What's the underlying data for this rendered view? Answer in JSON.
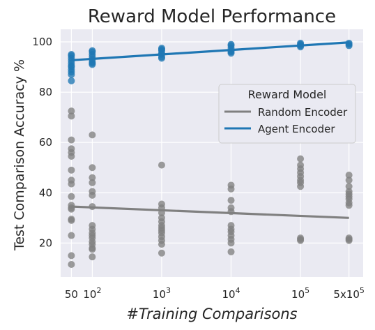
{
  "chart_data": {
    "type": "scatter",
    "title": "Reward Model Performance",
    "xlabel": "#Training Comparisons",
    "ylabel": "Test Comparison Accuracy %",
    "x_scale": "log",
    "xlim": [
      35,
      800000
    ],
    "ylim": [
      6.5,
      105
    ],
    "grid": true,
    "x_ticks": [
      {
        "value": 50,
        "base": "50",
        "exp": ""
      },
      {
        "value": 100,
        "base": "10",
        "exp": "2"
      },
      {
        "value": 1000,
        "base": "10",
        "exp": "3"
      },
      {
        "value": 10000,
        "base": "10",
        "exp": "4"
      },
      {
        "value": 100000,
        "base": "10",
        "exp": "5"
      },
      {
        "value": 500000,
        "base": "5x10",
        "exp": "5"
      }
    ],
    "y_ticks": [
      20,
      40,
      60,
      80,
      100
    ],
    "legend": {
      "title": "Reward Model",
      "placement": "center-right",
      "entries": [
        "Random Encoder",
        "Agent Encoder"
      ]
    },
    "series": [
      {
        "name": "Random Encoder",
        "color": "#808080",
        "points": [
          [
            50,
            72.5
          ],
          [
            50,
            70.5
          ],
          [
            50,
            61
          ],
          [
            50,
            57.5
          ],
          [
            50,
            56
          ],
          [
            50,
            54.5
          ],
          [
            50,
            49
          ],
          [
            50,
            45
          ],
          [
            50,
            43.5
          ],
          [
            50,
            38.5
          ],
          [
            50,
            35
          ],
          [
            50,
            34
          ],
          [
            50,
            33.5
          ],
          [
            50,
            29.5
          ],
          [
            50,
            29
          ],
          [
            50,
            23
          ],
          [
            50,
            15
          ],
          [
            50,
            11.5
          ],
          [
            100,
            63
          ],
          [
            100,
            50
          ],
          [
            100,
            46
          ],
          [
            100,
            44
          ],
          [
            100,
            40.5
          ],
          [
            100,
            39
          ],
          [
            100,
            34.5
          ],
          [
            100,
            27
          ],
          [
            100,
            25.5
          ],
          [
            100,
            24
          ],
          [
            100,
            23
          ],
          [
            100,
            22
          ],
          [
            100,
            20.5
          ],
          [
            100,
            19.5
          ],
          [
            100,
            18
          ],
          [
            100,
            17.5
          ],
          [
            100,
            14.5
          ],
          [
            1000,
            51
          ],
          [
            1000,
            35.5
          ],
          [
            1000,
            34
          ],
          [
            1000,
            32
          ],
          [
            1000,
            30
          ],
          [
            1000,
            28.5
          ],
          [
            1000,
            27
          ],
          [
            1000,
            26
          ],
          [
            1000,
            25
          ],
          [
            1000,
            24
          ],
          [
            1000,
            22.5
          ],
          [
            1000,
            21
          ],
          [
            1000,
            19.5
          ],
          [
            1000,
            16
          ],
          [
            10000,
            43
          ],
          [
            10000,
            41.5
          ],
          [
            10000,
            37
          ],
          [
            10000,
            34
          ],
          [
            10000,
            32.5
          ],
          [
            10000,
            27
          ],
          [
            10000,
            25.5
          ],
          [
            10000,
            24.5
          ],
          [
            10000,
            23
          ],
          [
            10000,
            21.5
          ],
          [
            10000,
            20
          ],
          [
            10000,
            16.5
          ],
          [
            100000,
            53.5
          ],
          [
            100000,
            51
          ],
          [
            100000,
            49.5
          ],
          [
            100000,
            48
          ],
          [
            100000,
            46.5
          ],
          [
            100000,
            45
          ],
          [
            100000,
            44
          ],
          [
            100000,
            42.5
          ],
          [
            100000,
            22
          ],
          [
            100000,
            21.5
          ],
          [
            100000,
            21
          ],
          [
            500000,
            47
          ],
          [
            500000,
            45
          ],
          [
            500000,
            42.5
          ],
          [
            500000,
            40.5
          ],
          [
            500000,
            39.5
          ],
          [
            500000,
            38.5
          ],
          [
            500000,
            37.5
          ],
          [
            500000,
            36
          ],
          [
            500000,
            35
          ],
          [
            500000,
            22
          ],
          [
            500000,
            21.5
          ],
          [
            500000,
            21
          ]
        ],
        "trend": [
          [
            50,
            34.5
          ],
          [
            500000,
            30
          ]
        ]
      },
      {
        "name": "Agent Encoder",
        "color": "#1f77b4",
        "points": [
          [
            50,
            95
          ],
          [
            50,
            94.5
          ],
          [
            50,
            93.5
          ],
          [
            50,
            92.5
          ],
          [
            50,
            91.5
          ],
          [
            50,
            90.5
          ],
          [
            50,
            90
          ],
          [
            50,
            89
          ],
          [
            50,
            88
          ],
          [
            50,
            87
          ],
          [
            50,
            84.5
          ],
          [
            100,
            96.5
          ],
          [
            100,
            96
          ],
          [
            100,
            95
          ],
          [
            100,
            94
          ],
          [
            100,
            93
          ],
          [
            100,
            92
          ],
          [
            100,
            91.5
          ],
          [
            100,
            91
          ],
          [
            1000,
            97.5
          ],
          [
            1000,
            97
          ],
          [
            1000,
            96.5
          ],
          [
            1000,
            95.5
          ],
          [
            1000,
            95
          ],
          [
            1000,
            94
          ],
          [
            1000,
            93.5
          ],
          [
            10000,
            99
          ],
          [
            10000,
            98.5
          ],
          [
            10000,
            97.5
          ],
          [
            10000,
            96.5
          ],
          [
            10000,
            96
          ],
          [
            10000,
            95.5
          ],
          [
            100000,
            99.5
          ],
          [
            100000,
            99
          ],
          [
            100000,
            98.5
          ],
          [
            100000,
            98
          ],
          [
            500000,
            99.5
          ],
          [
            500000,
            99
          ],
          [
            500000,
            98.5
          ]
        ],
        "trend": [
          [
            50,
            92.7
          ],
          [
            500000,
            99.8
          ]
        ]
      }
    ]
  }
}
